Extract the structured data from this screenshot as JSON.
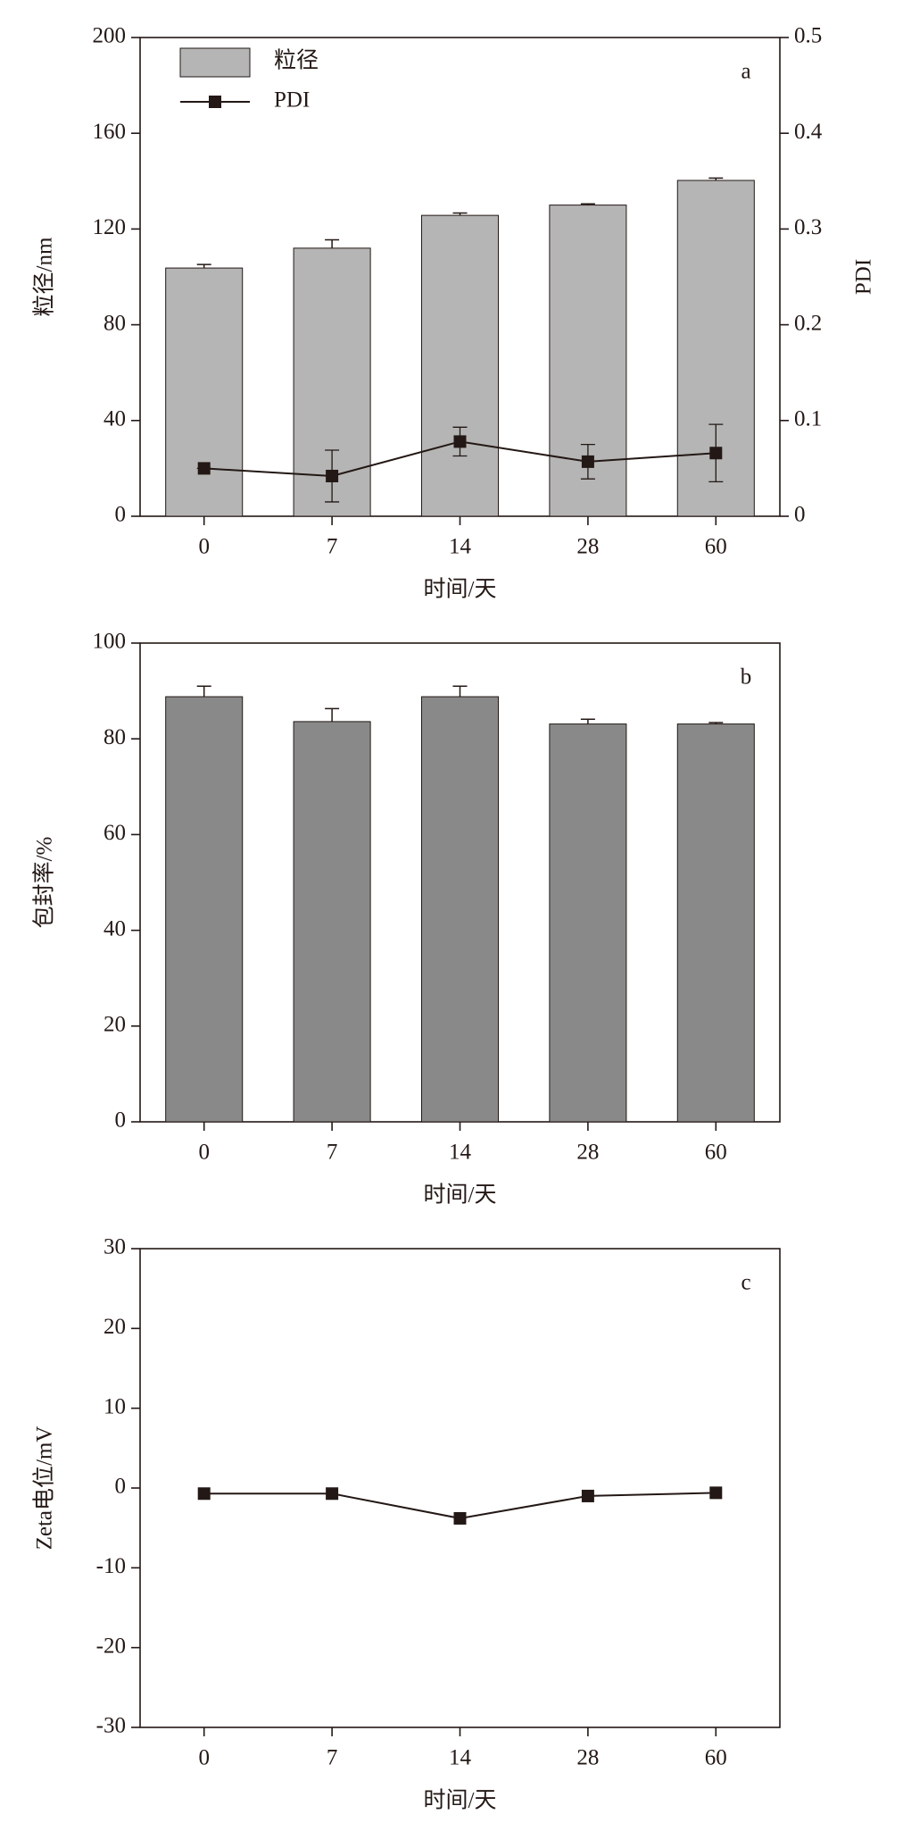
{
  "chart_data": [
    {
      "type": "bar",
      "annotation": "a",
      "x_label": "时间/天",
      "y_label": "粒径/nm",
      "y2_label": "PDI",
      "categories": [
        "0",
        "7",
        "14",
        "28",
        "60"
      ],
      "series": [
        {
          "name": "粒径",
          "type": "bar",
          "color": "#b4b5b4",
          "values": [
            103.7,
            112,
            125.7,
            130,
            140.3
          ],
          "errors": [
            1.5,
            3.5,
            1,
            0.5,
            1
          ]
        },
        {
          "name": "PDI",
          "type": "line",
          "axis": "y2",
          "color": "#231815",
          "values": [
            0.05,
            0.042,
            0.078,
            0.057,
            0.066
          ],
          "errors": [
            0,
            0.027,
            0.015,
            0.018,
            0.03
          ]
        }
      ],
      "ylim": [
        0,
        200
      ],
      "yticks": [
        0,
        40,
        80,
        120,
        160,
        200
      ],
      "y2lim": [
        0,
        0.5
      ],
      "y2ticks": [
        0,
        0.1,
        0.2,
        0.3,
        0.4,
        0.5
      ],
      "legend": "upper left"
    },
    {
      "type": "bar",
      "annotation": "b",
      "x_label": "时间/天",
      "y_label": "包封率/%",
      "categories": [
        "0",
        "7",
        "14",
        "28",
        "60"
      ],
      "values": [
        88.8,
        83.6,
        88.8,
        83.1,
        83.1
      ],
      "errors": [
        2.2,
        2.7,
        2.2,
        1,
        0.3
      ],
      "color": "#898989",
      "ylim": [
        0,
        100
      ],
      "yticks": [
        0,
        20,
        40,
        60,
        80,
        100
      ]
    },
    {
      "type": "line",
      "annotation": "c",
      "x_label": "时间/天",
      "y_label": "Zeta电位/mV",
      "categories": [
        "0",
        "7",
        "14",
        "28",
        "60"
      ],
      "values": [
        -0.7,
        -0.7,
        -3.8,
        -1.0,
        -0.6
      ],
      "color": "#231815",
      "ylim": [
        -30,
        30
      ],
      "yticks": [
        -30,
        -20,
        -10,
        0,
        10,
        20,
        30
      ]
    }
  ]
}
